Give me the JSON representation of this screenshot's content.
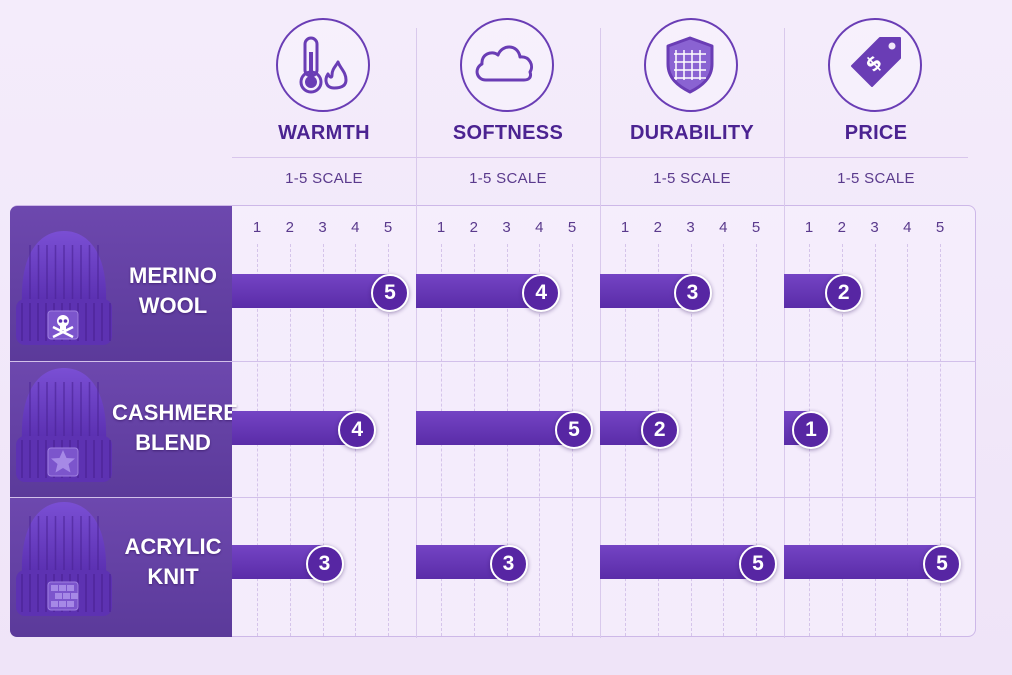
{
  "chart_data": {
    "type": "bar",
    "categories": [
      "WARMTH",
      "SOFTNESS",
      "DURABILITY",
      "PRICE"
    ],
    "scale_labels": [
      "1-5 SCALE",
      "1-5 SCALE",
      "1-5 SCALE",
      "1-5 SCALE"
    ],
    "ticks": [
      "1",
      "2",
      "3",
      "4",
      "5"
    ],
    "xlim": [
      1,
      5
    ],
    "rows": [
      {
        "label_lines": [
          "MERINO",
          "WOOL"
        ],
        "hat_icon": "skull-crossbones-icon",
        "values": [
          5,
          4,
          3,
          2
        ]
      },
      {
        "label_lines": [
          "CASHMERE",
          "BLEND"
        ],
        "hat_icon": "star-icon",
        "values": [
          4,
          5,
          2,
          1
        ]
      },
      {
        "label_lines": [
          "ACRYLIC",
          "KNIT"
        ],
        "hat_icon": "brick-icon",
        "values": [
          3,
          3,
          5,
          5
        ]
      }
    ],
    "category_icons": [
      "thermometer-flame-icon",
      "cloud-icon",
      "shield-icon",
      "price-tag-icon"
    ],
    "colors": {
      "accent": "#5a2ca8",
      "hat": "#6a3fc4",
      "row_label_bg": "#5b3a9a",
      "background": "#f1e7f9"
    },
    "grid": true
  }
}
